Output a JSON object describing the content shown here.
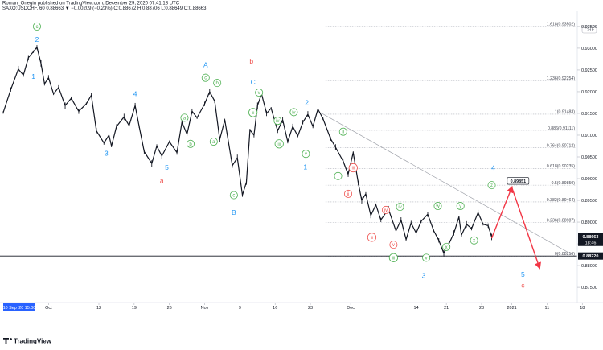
{
  "header": {
    "publisher_line": "Roman_Onegin published on TradingView.com, December 29, 2020 07:41:18 UTC",
    "symbol_line": "SAXO:USDCHF, 60  0.88663  ▼ −0.00209 (−0.23%)  O:0.88672  H:0.88706  L:0.88649  C:0.88663"
  },
  "branding": {
    "logo_text": "TradingView"
  },
  "currency_badge": "CHF",
  "chart_data": {
    "type": "line",
    "title": "SAXO:USDCHF, 60",
    "symbol": "SAXO:USDCHF",
    "interval": "60",
    "ohlc_last": {
      "open": 0.88672,
      "high": 0.88706,
      "low": 0.88649,
      "close": 0.88663,
      "change": -0.00209,
      "change_pct": -0.23
    },
    "ylim": [
      0.8715,
      0.9385
    ],
    "xlim": [
      0,
      114
    ],
    "x_axis_start_label": "10 Sep '20  15:00",
    "x_ticks": [
      {
        "x": 0,
        "label": "10 Sep '20  15:00"
      },
      {
        "x": 9,
        "label": "Oct"
      },
      {
        "x": 19,
        "label": "12"
      },
      {
        "x": 26,
        "label": "19"
      },
      {
        "x": 33,
        "label": "26"
      },
      {
        "x": 40,
        "label": "Nov"
      },
      {
        "x": 47,
        "label": "9"
      },
      {
        "x": 54,
        "label": "16"
      },
      {
        "x": 61,
        "label": "23"
      },
      {
        "x": 69,
        "label": "Dec"
      },
      {
        "x": 82,
        "label": "14"
      },
      {
        "x": 88,
        "label": "21"
      },
      {
        "x": 95,
        "label": "28"
      },
      {
        "x": 101,
        "label": "2021"
      },
      {
        "x": 108,
        "label": "11"
      },
      {
        "x": 115,
        "label": "18"
      }
    ],
    "y_ticks": [
      0.935,
      0.93,
      0.925,
      0.92,
      0.915,
      0.91,
      0.905,
      0.9,
      0.895,
      0.89,
      0.885,
      0.88,
      0.875
    ],
    "price_series": {
      "name": "USDCHF",
      "points": [
        [
          0,
          0.9152
        ],
        [
          1.5,
          0.9205
        ],
        [
          3,
          0.9252
        ],
        [
          4,
          0.9238
        ],
        [
          5,
          0.9278
        ],
        [
          6,
          0.9292
        ],
        [
          6.7,
          0.9302
        ],
        [
          7.5,
          0.9265
        ],
        [
          8.2,
          0.9218
        ],
        [
          9,
          0.9232
        ],
        [
          10,
          0.9195
        ],
        [
          11,
          0.921
        ],
        [
          12.3,
          0.9168
        ],
        [
          13.5,
          0.9185
        ],
        [
          15,
          0.9155
        ],
        [
          16.5,
          0.9172
        ],
        [
          17.5,
          0.9192
        ],
        [
          18.5,
          0.911
        ],
        [
          20,
          0.9082
        ],
        [
          21,
          0.91
        ],
        [
          21.5,
          0.9075
        ],
        [
          22.5,
          0.912
        ],
        [
          24,
          0.9142
        ],
        [
          25,
          0.9122
        ],
        [
          26.2,
          0.9168
        ],
        [
          27,
          0.912
        ],
        [
          28,
          0.9062
        ],
        [
          29.5,
          0.9035
        ],
        [
          30.5,
          0.9075
        ],
        [
          31.5,
          0.9052
        ],
        [
          33,
          0.9085
        ],
        [
          34.5,
          0.906
        ],
        [
          35.5,
          0.913
        ],
        [
          36.5,
          0.9102
        ],
        [
          37.5,
          0.9155
        ],
        [
          38.5,
          0.914
        ],
        [
          40,
          0.9172
        ],
        [
          41,
          0.92
        ],
        [
          42,
          0.9178
        ],
        [
          43,
          0.909
        ],
        [
          44,
          0.9135
        ],
        [
          45.5,
          0.903
        ],
        [
          46.5,
          0.9048
        ],
        [
          47.5,
          0.8962
        ],
        [
          48.3,
          0.8992
        ],
        [
          49,
          0.9112
        ],
        [
          49.8,
          0.91
        ],
        [
          50.5,
          0.9168
        ],
        [
          51.3,
          0.9195
        ],
        [
          52.3,
          0.915
        ],
        [
          53.2,
          0.9162
        ],
        [
          54.5,
          0.911
        ],
        [
          55.5,
          0.9135
        ],
        [
          56.5,
          0.9085
        ],
        [
          57.5,
          0.912
        ],
        [
          58.5,
          0.9098
        ],
        [
          59.5,
          0.913
        ],
        [
          60.5,
          0.9148
        ],
        [
          61.5,
          0.912
        ],
        [
          62.5,
          0.916
        ],
        [
          63.5,
          0.9138
        ],
        [
          65,
          0.9092
        ],
        [
          66,
          0.9072
        ],
        [
          67.5,
          0.904
        ],
        [
          68.5,
          0.901
        ],
        [
          69.5,
          0.906
        ],
        [
          70.5,
          0.899
        ],
        [
          71.2,
          0.895
        ],
        [
          72,
          0.8965
        ],
        [
          73,
          0.8915
        ],
        [
          74,
          0.894
        ],
        [
          75,
          0.8905
        ],
        [
          76.5,
          0.893
        ],
        [
          78,
          0.888
        ],
        [
          79,
          0.8905
        ],
        [
          80,
          0.886
        ],
        [
          81,
          0.8898
        ],
        [
          82,
          0.8875
        ],
        [
          83,
          0.8902
        ],
        [
          84.3,
          0.8918
        ],
        [
          85.5,
          0.888
        ],
        [
          86.5,
          0.8858
        ],
        [
          87.5,
          0.8828
        ],
        [
          88.5,
          0.885
        ],
        [
          89.5,
          0.8875
        ],
        [
          90.5,
          0.8912
        ],
        [
          91,
          0.887
        ],
        [
          92,
          0.8895
        ],
        [
          93,
          0.8885
        ],
        [
          94.3,
          0.8922
        ],
        [
          95.3,
          0.8895
        ],
        [
          96.3,
          0.8892
        ],
        [
          97,
          0.8866
        ]
      ]
    },
    "last_price": {
      "value": 0.88663,
      "label": "0.88663",
      "countdown": "18:46"
    },
    "horizontal_line": {
      "value": 0.8822,
      "label": "0.88220"
    },
    "fib_retracement": [
      {
        "ratio": "1.618",
        "value": 0.93502,
        "label": "1.618(0.93502)"
      },
      {
        "ratio": "1.236",
        "value": 0.92254,
        "label": "1.236(0.92254)"
      },
      {
        "ratio": "1",
        "value": 0.91483,
        "label": "1(0.91483)"
      },
      {
        "ratio": "0.886",
        "value": 0.91111,
        "label": "0.886(0.91111)"
      },
      {
        "ratio": "0.764",
        "value": 0.90712,
        "label": "0.764(0.90712)"
      },
      {
        "ratio": "0.618",
        "value": 0.90235,
        "label": "0.618(0.90235)"
      },
      {
        "ratio": "0.5",
        "value": 0.8985,
        "label": "0.5(0.89850)"
      },
      {
        "ratio": "0.382",
        "value": 0.89464,
        "label": "0.382(0.89464)"
      },
      {
        "ratio": "0.236",
        "value": 0.88987,
        "label": "0.236(0.88987)"
      },
      {
        "ratio": "0",
        "value": 0.88216,
        "label": "0(0.88216)"
      }
    ],
    "trendline": [
      [
        63,
        0.9152
      ],
      [
        113,
        0.8825
      ]
    ],
    "projection_path": [
      [
        97,
        0.8863
      ],
      [
        101,
        0.898
      ],
      [
        106.5,
        0.8795
      ]
    ],
    "target_label": {
      "x": 102,
      "value": 0.89851,
      "label": "0.89851"
    },
    "wave_labels": [
      {
        "text": "c",
        "x": 6.7,
        "y": 0.935,
        "color": "#4caf50",
        "circled": true
      },
      {
        "text": "2",
        "x": 6.7,
        "y": 0.932,
        "color": "#2196f3",
        "circled": false
      },
      {
        "text": "1",
        "x": 6.0,
        "y": 0.9235,
        "color": "#2196f3",
        "circled": false
      },
      {
        "text": "4",
        "x": 26.2,
        "y": 0.9195,
        "color": "#2196f3",
        "circled": false
      },
      {
        "text": "3",
        "x": 20.5,
        "y": 0.9058,
        "color": "#2196f3",
        "circled": false
      },
      {
        "text": "5",
        "x": 32.5,
        "y": 0.9026,
        "color": "#2196f3",
        "circled": false
      },
      {
        "text": "a",
        "x": 31.5,
        "y": 0.8995,
        "color": "#ef5350",
        "circled": false
      },
      {
        "text": "A",
        "x": 40.2,
        "y": 0.9262,
        "color": "#2196f3",
        "circled": false
      },
      {
        "text": "c",
        "x": 40.2,
        "y": 0.9232,
        "color": "#4caf50",
        "circled": true
      },
      {
        "text": "b",
        "x": 42.5,
        "y": 0.922,
        "color": "#4caf50",
        "circled": true
      },
      {
        "text": "a",
        "x": 36.0,
        "y": 0.914,
        "color": "#4caf50",
        "circled": true
      },
      {
        "text": "b",
        "x": 37.2,
        "y": 0.908,
        "color": "#4caf50",
        "circled": true
      },
      {
        "text": "a",
        "x": 41.8,
        "y": 0.9085,
        "color": "#4caf50",
        "circled": true
      },
      {
        "text": "c",
        "x": 45.8,
        "y": 0.8962,
        "color": "#4caf50",
        "circled": true
      },
      {
        "text": "B",
        "x": 45.8,
        "y": 0.8922,
        "color": "#2196f3",
        "circled": false
      },
      {
        "text": "b",
        "x": 49.3,
        "y": 0.927,
        "color": "#ef5350",
        "circled": false
      },
      {
        "text": "C",
        "x": 49.6,
        "y": 0.9222,
        "color": "#2196f3",
        "circled": false
      },
      {
        "text": "v",
        "x": 50.8,
        "y": 0.9198,
        "color": "#4caf50",
        "circled": true
      },
      {
        "text": "iii",
        "x": 49.6,
        "y": 0.9152,
        "color": "#4caf50",
        "circled": true
      },
      {
        "text": "iv",
        "x": 54.5,
        "y": 0.9133,
        "color": "#4caf50",
        "circled": true
      },
      {
        "text": "iii",
        "x": 54.8,
        "y": 0.908,
        "color": "#4caf50",
        "circled": true
      },
      {
        "text": "iv",
        "x": 57.7,
        "y": 0.9153,
        "color": "#4caf50",
        "circled": true
      },
      {
        "text": "v",
        "x": 60.1,
        "y": 0.9057,
        "color": "#4caf50",
        "circled": true
      },
      {
        "text": "2",
        "x": 60.3,
        "y": 0.9175,
        "color": "#2196f3",
        "circled": false
      },
      {
        "text": "1",
        "x": 60.0,
        "y": 0.9027,
        "color": "#2196f3",
        "circled": false
      },
      {
        "text": "ii",
        "x": 67.5,
        "y": 0.9108,
        "color": "#4caf50",
        "circled": true
      },
      {
        "text": "i",
        "x": 66.5,
        "y": 0.9006,
        "color": "#4caf50",
        "circled": true
      },
      {
        "text": "iii",
        "x": 69.5,
        "y": 0.9025,
        "color": "#ef5350",
        "circled": true
      },
      {
        "text": "ii",
        "x": 68.5,
        "y": 0.8965,
        "color": "#ef5350",
        "circled": true
      },
      {
        "text": "iv",
        "x": 76.0,
        "y": 0.8928,
        "color": "#ef5350",
        "circled": true
      },
      {
        "text": "iv",
        "x": 78.8,
        "y": 0.8935,
        "color": "#4caf50",
        "circled": true
      },
      {
        "text": "iii",
        "x": 73.2,
        "y": 0.8865,
        "color": "#ef5350",
        "circled": true
      },
      {
        "text": "v",
        "x": 77.5,
        "y": 0.8848,
        "color": "#ef5350",
        "circled": true
      },
      {
        "text": "iii",
        "x": 77.5,
        "y": 0.8818,
        "color": "#4caf50",
        "circled": true
      },
      {
        "text": "v",
        "x": 84.0,
        "y": 0.8818,
        "color": "#4caf50",
        "circled": true
      },
      {
        "text": "w",
        "x": 86.3,
        "y": 0.8937,
        "color": "#4caf50",
        "circled": true
      },
      {
        "text": "y",
        "x": 90.8,
        "y": 0.8937,
        "color": "#4caf50",
        "circled": true
      },
      {
        "text": "x",
        "x": 88.0,
        "y": 0.8843,
        "color": "#4caf50",
        "circled": true
      },
      {
        "text": "x",
        "x": 93.5,
        "y": 0.8858,
        "color": "#4caf50",
        "circled": true
      },
      {
        "text": "3",
        "x": 83.5,
        "y": 0.8777,
        "color": "#2196f3",
        "circled": false
      },
      {
        "text": "z",
        "x": 97.0,
        "y": 0.8985,
        "color": "#4caf50",
        "circled": true
      },
      {
        "text": "4",
        "x": 97.3,
        "y": 0.9025,
        "color": "#2196f3",
        "circled": false
      },
      {
        "text": "5",
        "x": 103.2,
        "y": 0.878,
        "color": "#2196f3",
        "circled": false
      },
      {
        "text": "c",
        "x": 103.2,
        "y": 0.8755,
        "color": "#ef5350",
        "circled": false
      }
    ]
  }
}
